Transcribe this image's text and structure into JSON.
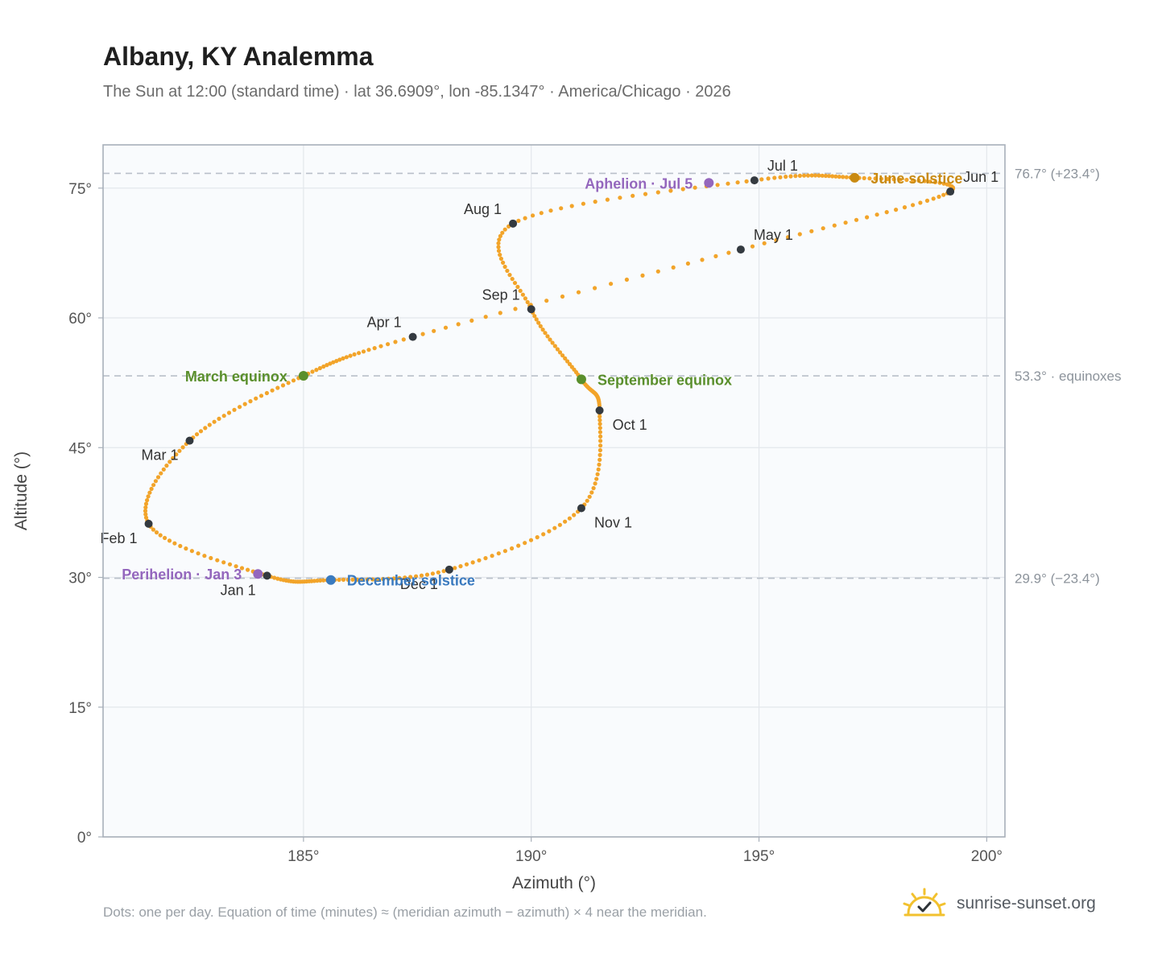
{
  "title": "Albany, KY Analemma",
  "subtitle": "The Sun at 12:00 (standard time) · lat 36.6909°, lon -85.1347° · America/Chicago · 2026",
  "footnote": "Dots: one per day. Equation of time (minutes) ≈ (meridian azimuth − azimuth) × 4 near the meridian.",
  "brand": {
    "name": "sunrise-sunset.org",
    "icon": "sun-check-icon"
  },
  "colors": {
    "curve": "#f2a42a",
    "month_marker": "#343a40",
    "equinox": "#5a8f2c",
    "june_solstice": "#c98a12",
    "december_solstice": "#3a7abf",
    "apsis": "#9467bd",
    "grid": "#e3e7ec",
    "frame": "#a8b0ba",
    "reference_line": "#b9c0c9",
    "plot_background": "#f9fbfd"
  },
  "chart_data": {
    "type": "scatter",
    "xlabel": "Azimuth (°)",
    "ylabel": "Altitude (°)",
    "xlim": [
      180.6,
      200.4
    ],
    "ylim": [
      0,
      80
    ],
    "x_ticks": [
      185,
      190,
      195,
      200
    ],
    "x_tick_labels": [
      "185°",
      "190°",
      "195°",
      "200°"
    ],
    "y_ticks": [
      0,
      15,
      30,
      45,
      60,
      75
    ],
    "y_tick_labels": [
      "0°",
      "15°",
      "30°",
      "45°",
      "60°",
      "75°"
    ],
    "grid": true,
    "path_keypoints": [
      {
        "label": "Jan 1",
        "x": 184.2,
        "y": 30.2
      },
      {
        "label": "Feb 1",
        "x": 181.6,
        "y": 36.2
      },
      {
        "label": "Mar 1",
        "x": 182.5,
        "y": 45.8
      },
      {
        "label": "Mar 20",
        "x": 185.0,
        "y": 53.3
      },
      {
        "label": "Apr 1",
        "x": 187.4,
        "y": 57.8
      },
      {
        "label": "May 1",
        "x": 194.6,
        "y": 67.9
      },
      {
        "label": "Jun 1",
        "x": 199.2,
        "y": 74.6
      },
      {
        "label": "Jun 21",
        "x": 197.1,
        "y": 76.2
      },
      {
        "label": "Jul 1",
        "x": 194.9,
        "y": 75.9
      },
      {
        "label": "Aug 1",
        "x": 189.6,
        "y": 70.9
      },
      {
        "label": "Sep 1",
        "x": 190.0,
        "y": 61.0
      },
      {
        "label": "Sep 22",
        "x": 191.1,
        "y": 52.9
      },
      {
        "label": "Oct 1",
        "x": 191.5,
        "y": 49.3
      },
      {
        "label": "Nov 1",
        "x": 191.1,
        "y": 38.0
      },
      {
        "label": "Dec 1",
        "x": 188.2,
        "y": 30.9
      },
      {
        "label": "Dec 21",
        "x": 185.6,
        "y": 29.7
      }
    ],
    "month_markers": [
      {
        "label": "Jan 1",
        "x": 184.2,
        "y": 30.2,
        "label_side": "below-left"
      },
      {
        "label": "Feb 1",
        "x": 181.6,
        "y": 36.2,
        "label_side": "below-left"
      },
      {
        "label": "Mar 1",
        "x": 182.5,
        "y": 45.8,
        "label_side": "below-left"
      },
      {
        "label": "Apr 1",
        "x": 187.4,
        "y": 57.8,
        "label_side": "above-left"
      },
      {
        "label": "May 1",
        "x": 194.6,
        "y": 67.9,
        "label_side": "above-right"
      },
      {
        "label": "Jun 1",
        "x": 199.2,
        "y": 74.6,
        "label_side": "above-right"
      },
      {
        "label": "Jul 1",
        "x": 194.9,
        "y": 75.9,
        "label_side": "above-right"
      },
      {
        "label": "Aug 1",
        "x": 189.6,
        "y": 70.9,
        "label_side": "above-left"
      },
      {
        "label": "Sep 1",
        "x": 190.0,
        "y": 61.0,
        "label_side": "above-left"
      },
      {
        "label": "Oct 1",
        "x": 191.5,
        "y": 49.3,
        "label_side": "below-right"
      },
      {
        "label": "Nov 1",
        "x": 191.1,
        "y": 38.0,
        "label_side": "below-right"
      },
      {
        "label": "Dec 1",
        "x": 188.2,
        "y": 30.9,
        "label_side": "below-left"
      }
    ],
    "events": [
      {
        "label": "March equinox",
        "x": 185.0,
        "y": 53.3,
        "kind": "equinox",
        "label_side": "left"
      },
      {
        "label": "September equinox",
        "x": 191.1,
        "y": 52.9,
        "kind": "equinox",
        "label_side": "right"
      },
      {
        "label": "June solstice",
        "x": 197.1,
        "y": 76.2,
        "kind": "june_solstice",
        "label_side": "right"
      },
      {
        "label": "December solstice",
        "x": 185.6,
        "y": 29.7,
        "kind": "december_solstice",
        "label_side": "right"
      },
      {
        "label": "Aphelion · Jul 5",
        "x": 193.9,
        "y": 75.6,
        "kind": "apsis",
        "label_side": "left"
      },
      {
        "label": "Perihelion · Jan 3",
        "x": 184.0,
        "y": 30.4,
        "kind": "apsis",
        "label_side": "left"
      }
    ],
    "reference_lines": [
      {
        "y": 76.7,
        "label": "76.7° (+23.4°)"
      },
      {
        "y": 53.3,
        "label": "53.3° · equinoxes"
      },
      {
        "y": 29.9,
        "label": "29.9° (−23.4°)"
      }
    ]
  }
}
